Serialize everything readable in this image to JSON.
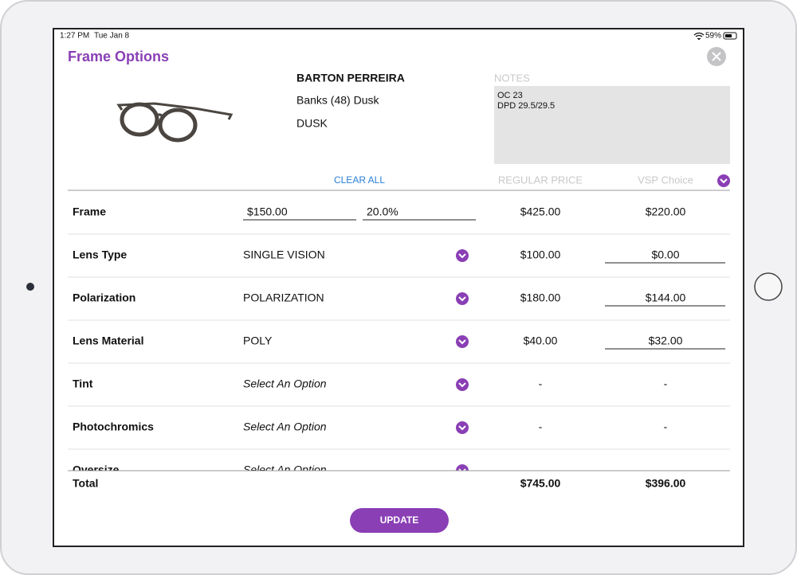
{
  "status_bar": {
    "time": "1:27 PM",
    "date": "Tue Jan 8",
    "battery": "59%"
  },
  "header": {
    "title": "Frame Options"
  },
  "product": {
    "brand": "BARTON PERREIRA",
    "model": "Banks (48) Dusk",
    "color": "DUSK"
  },
  "notes": {
    "label": "NOTES",
    "lines": [
      "OC 23",
      "DPD 29.5/29.5"
    ]
  },
  "table": {
    "clear_all": "CLEAR ALL",
    "columns": [
      "REGULAR PRICE",
      "VSP Choice"
    ],
    "rows": [
      {
        "label": "Frame",
        "inputs": [
          "$150.00",
          "20.0%"
        ],
        "regular": "$425.00",
        "vsp": "$220.00"
      },
      {
        "label": "Lens Type",
        "selection": "SINGLE VISION",
        "regular": "$100.00",
        "vsp": "$0.00",
        "vsp_editable": true
      },
      {
        "label": "Polarization",
        "selection": "POLARIZATION",
        "regular": "$180.00",
        "vsp": "$144.00",
        "vsp_editable": true
      },
      {
        "label": "Lens Material",
        "selection": "POLY",
        "regular": "$40.00",
        "vsp": "$32.00",
        "vsp_editable": true
      },
      {
        "label": "Tint",
        "selection": "Select An Option",
        "placeholder": true,
        "regular": "-",
        "vsp": "-"
      },
      {
        "label": "Photochromics",
        "selection": "Select An Option",
        "placeholder": true,
        "regular": "-",
        "vsp": "-"
      },
      {
        "label": "Oversize",
        "selection": "Select An Option",
        "placeholder": true
      }
    ],
    "total": {
      "label": "Total",
      "regular": "$745.00",
      "vsp": "$396.00"
    }
  },
  "button": "UPDATE"
}
